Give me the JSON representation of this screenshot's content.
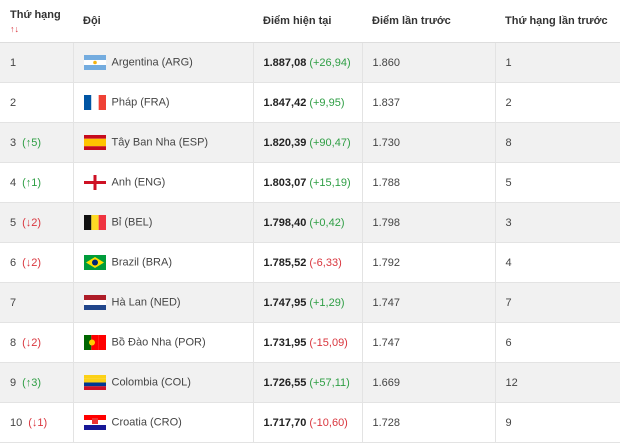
{
  "table": {
    "headers": [
      "Thứ hạng",
      "Đội",
      "Điểm hiện tại",
      "Điểm lần trước",
      "Thứ hạng lần trước"
    ],
    "sort_icon": "↑↓",
    "rows": [
      {
        "rank": "1",
        "team": "Argentina (ARG)",
        "points": "1.887,08",
        "points_change": "(+26,94)",
        "previous_points": "1.860",
        "previous_rank": "1"
      },
      {
        "rank": "2",
        "team": "Pháp (FRA)",
        "points": "1.847,42",
        "points_change": "(+9,95)",
        "previous_points": "1.837",
        "previous_rank": "2"
      },
      {
        "rank": "3",
        "rank_change": "(↑5)",
        "team": "Tây Ban Nha (ESP)",
        "points": "1.820,39",
        "points_change": "(+90,47)",
        "previous_points": "1.730",
        "previous_rank": "8"
      },
      {
        "rank": "4",
        "rank_change": "(↑1)",
        "team": "Anh (ENG)",
        "points": "1.803,07",
        "points_change": "(+15,19)",
        "previous_points": "1.788",
        "previous_rank": "5"
      },
      {
        "rank": "5",
        "rank_change": "(↓2)",
        "team": "Bỉ (BEL)",
        "points": "1.798,40",
        "points_change": "(+0,42)",
        "previous_points": "1.798",
        "previous_rank": "3"
      },
      {
        "rank": "6",
        "rank_change": "(↓2)",
        "team": "Brazil (BRA)",
        "points": "1.785,52",
        "points_change": "(-6,33)",
        "previous_points": "1.792",
        "previous_rank": "4"
      },
      {
        "rank": "7",
        "team": "Hà Lan (NED)",
        "points": "1.747,95",
        "points_change": "(+1,29)",
        "previous_points": "1.747",
        "previous_rank": "7"
      },
      {
        "rank": "8",
        "rank_change": "(↓2)",
        "team": "Bồ Đào Nha (POR)",
        "points": "1.731,95",
        "points_change": "(-15,09)",
        "previous_points": "1.747",
        "previous_rank": "6"
      },
      {
        "rank": "9",
        "rank_change": "(↑3)",
        "team": "Colombia (COL)",
        "points": "1.726,55",
        "points_change": "(+57,11)",
        "previous_points": "1.669",
        "previous_rank": "12"
      },
      {
        "rank": "10",
        "rank_change": "(↓1)",
        "team": "Croatia (CRO)",
        "points": "1.717,70",
        "points_change": "(-10,60)",
        "previous_points": "1.728",
        "previous_rank": "9"
      }
    ]
  }
}
